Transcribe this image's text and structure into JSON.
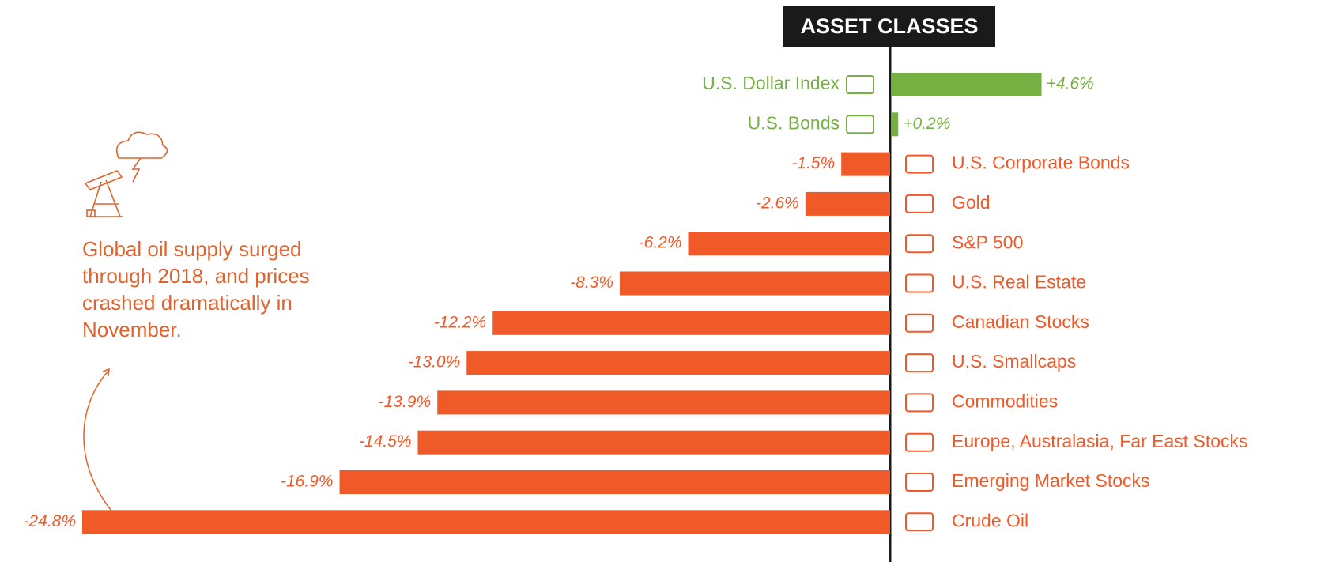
{
  "chart_data": {
    "type": "bar",
    "orientation": "horizontal",
    "title": "ASSET CLASSES",
    "categories": [
      "U.S. Dollar Index",
      "U.S. Bonds",
      "U.S. Corporate Bonds",
      "Gold",
      "S&P 500",
      "U.S. Real Estate",
      "Canadian Stocks",
      "U.S. Smallcaps",
      "Commodities",
      "Europe, Australasia, Far East Stocks",
      "Emerging Market Stocks",
      "Crude Oil"
    ],
    "values": [
      4.6,
      0.2,
      -1.5,
      -2.6,
      -6.2,
      -8.3,
      -12.2,
      -13.0,
      -13.9,
      -14.5,
      -16.9,
      -24.8
    ],
    "value_labels": [
      "+4.6%",
      "+0.2%",
      "-1.5%",
      "-2.6%",
      "-6.2%",
      "-8.3%",
      "-12.2%",
      "-13.0%",
      "-13.9%",
      "-14.5%",
      "-16.9%",
      "-24.8%"
    ],
    "positive_color": "#76b043",
    "negative_color": "#f05a28",
    "annotation": [
      "Global oil supply surged",
      "through 2018, and prices",
      "crashed dramatically in",
      "November."
    ]
  }
}
